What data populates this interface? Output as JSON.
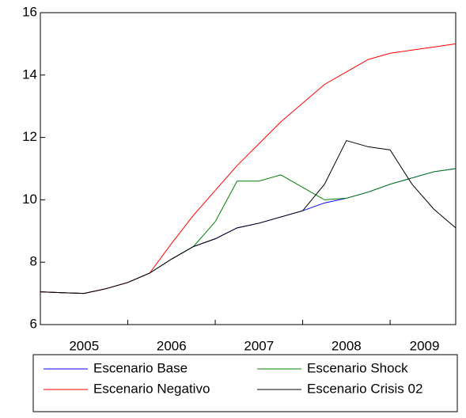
{
  "chart_data": {
    "type": "line",
    "x": [
      2005,
      2005.25,
      2005.5,
      2005.75,
      2006,
      2006.25,
      2006.5,
      2006.75,
      2007,
      2007.25,
      2007.5,
      2007.75,
      2008,
      2008.25,
      2008.5,
      2008.75,
      2009,
      2009.25,
      2009.5,
      2009.75
    ],
    "xlim": [
      2005,
      2009.75
    ],
    "xticks": [
      2005,
      2006,
      2007,
      2008,
      2009
    ],
    "ylim": [
      6,
      16
    ],
    "yticks": [
      6,
      8,
      10,
      12,
      14,
      16
    ],
    "series": [
      {
        "name": "Escenario Base",
        "color": "#0000ff",
        "values": [
          7.05,
          7.02,
          7.0,
          7.15,
          7.35,
          7.65,
          8.1,
          8.5,
          8.75,
          9.1,
          9.25,
          9.45,
          9.65,
          9.9,
          10.05,
          10.25,
          10.5,
          10.7,
          10.9,
          11.0
        ]
      },
      {
        "name": "Escenario Shock",
        "color": "#008000",
        "values": [
          7.05,
          7.02,
          7.0,
          7.15,
          7.35,
          7.65,
          8.1,
          8.5,
          9.3,
          10.6,
          10.6,
          10.8,
          10.4,
          10.0,
          10.05,
          10.25,
          10.5,
          10.7,
          10.9,
          11.0
        ]
      },
      {
        "name": "Escenario Negativo",
        "color": "#ff0000",
        "values": [
          7.05,
          7.02,
          7.0,
          7.15,
          7.35,
          7.65,
          8.6,
          9.5,
          10.3,
          11.1,
          11.8,
          12.5,
          13.1,
          13.7,
          14.1,
          14.5,
          14.7,
          14.8,
          14.9,
          15.0
        ]
      },
      {
        "name": "Escenario Crisis 02",
        "color": "#000000",
        "values": [
          7.05,
          7.02,
          7.0,
          7.15,
          7.35,
          7.65,
          8.1,
          8.5,
          8.75,
          9.1,
          9.25,
          9.45,
          9.65,
          10.5,
          11.9,
          11.7,
          11.6,
          10.5,
          9.7,
          9.1
        ]
      }
    ]
  }
}
